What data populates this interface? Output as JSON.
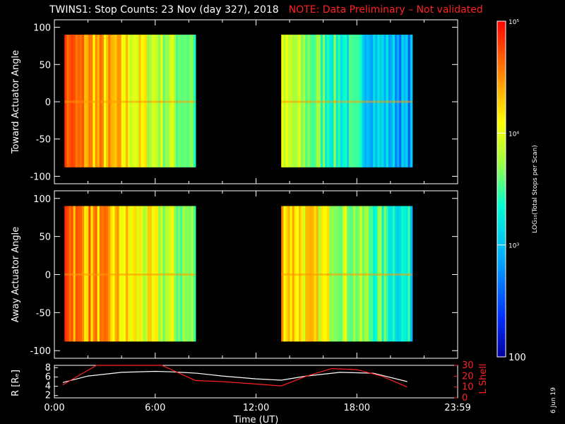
{
  "title": "TWINS1: Stop Counts: 23 Nov (day 327), 2018",
  "note": "NOTE: Data Preliminary – Not validated",
  "date_stamp": "6 Jun 19",
  "colors": {
    "note": "#ff2020",
    "lshell": "#ff2020",
    "radius": "#ffffff",
    "axes": "#ffffff",
    "background": "#000000"
  },
  "chart_data": [
    {
      "type": "heatmap",
      "name": "toward",
      "ylabel": "Toward Actuator Angle",
      "ylim": [
        -110,
        110
      ],
      "yticks": [
        100,
        50,
        0,
        -50,
        -100
      ],
      "xlim_hours": [
        0,
        24
      ],
      "data_blocks_hours": [
        [
          0.6,
          8.4
        ],
        [
          13.5,
          21.3
        ]
      ],
      "angle_range": [
        -88,
        90
      ]
    },
    {
      "type": "heatmap",
      "name": "away",
      "ylabel": "Away Actuator Angle",
      "ylim": [
        -110,
        110
      ],
      "yticks": [
        100,
        50,
        0,
        -50,
        -100
      ],
      "xlim_hours": [
        0,
        24
      ],
      "data_blocks_hours": [
        [
          0.6,
          8.4
        ],
        [
          13.5,
          21.3
        ]
      ],
      "angle_range": [
        -88,
        90
      ]
    },
    {
      "type": "line",
      "name": "orbit",
      "xlabel": "Time (UT)",
      "xticks": [
        "0:00",
        "6:00",
        "12:00",
        "18:00",
        "23:59"
      ],
      "xtick_hours": [
        0,
        6,
        12,
        18,
        24
      ],
      "left_ylabel": "R [Rₑ]",
      "left_yticks": [
        8,
        6,
        4,
        2
      ],
      "left_ylim": [
        1.5,
        8.5
      ],
      "right_ylabel": "L Shell",
      "right_yticks": [
        30,
        20,
        10,
        0
      ],
      "right_ylim": [
        0,
        30
      ],
      "series": [
        {
          "name": "R",
          "axis": "left",
          "x_hours": [
            0.5,
            2,
            4,
            6,
            7,
            8.5,
            10,
            12,
            13.5,
            15,
            17,
            19,
            21
          ],
          "values": [
            4.8,
            6.2,
            7.0,
            7.2,
            7.1,
            6.8,
            6.2,
            5.6,
            5.3,
            6.2,
            7.0,
            6.8,
            5.0
          ]
        },
        {
          "name": "L Shell",
          "axis": "right",
          "x_hours": [
            0.5,
            2.5,
            6.4,
            8.4,
            10,
            13.5,
            15,
            16.5,
            18,
            19.5,
            21
          ],
          "values": [
            12,
            30,
            30,
            16,
            15,
            11,
            20,
            27,
            26,
            20,
            10
          ]
        }
      ]
    },
    {
      "type": "heatmap-colorbar",
      "name": "colorbar",
      "label": "LOG₁₀(Total Stops per Scan)",
      "scale": "log",
      "range": [
        100,
        100000
      ],
      "tick_labels": [
        "10⁵",
        "10⁴",
        "10³",
        "100"
      ],
      "tick_values": [
        100000,
        10000,
        1000,
        100
      ]
    }
  ]
}
